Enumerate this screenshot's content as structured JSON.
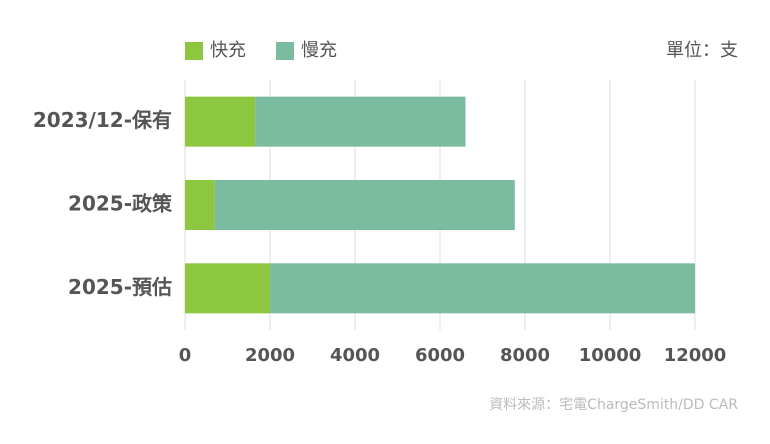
{
  "chart_data": {
    "type": "stacked-barh",
    "unit_note": "單位：支",
    "source": "資料來源：宅電ChargeSmith/DD CAR",
    "categories": [
      "2023/12-保有",
      "2025-政策",
      "2025-預估"
    ],
    "series": [
      {
        "name": "快充",
        "color": "#8dc63f",
        "values": [
          1650,
          700,
          2000
        ]
      },
      {
        "name": "慢充",
        "color": "#7bbba0",
        "values": [
          4950,
          7060,
          10000
        ]
      }
    ],
    "xlim": [
      0,
      12000
    ],
    "xticks": [
      0,
      2000,
      4000,
      6000,
      8000,
      10000,
      12000
    ],
    "grid": true,
    "legend": "top-left"
  }
}
